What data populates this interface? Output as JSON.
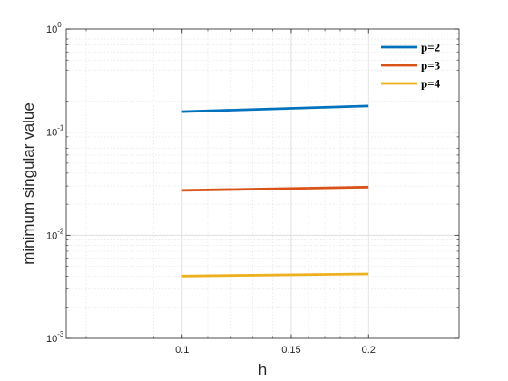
{
  "chart_data": {
    "type": "line",
    "xlabel": "h",
    "ylabel": "minimum singular value",
    "xscale": "log",
    "yscale": "log",
    "xlim": [
      0.065,
      0.28
    ],
    "ylim": [
      0.001,
      1
    ],
    "grid": true,
    "minor_grid": true,
    "legend_position": "top-right",
    "x_ticks": [
      {
        "value": 0.1,
        "label": "0.1"
      },
      {
        "value": 0.15,
        "label": "0.15"
      },
      {
        "value": 0.2,
        "label": "0.2"
      }
    ],
    "y_ticks": [
      {
        "value": 0.001,
        "base": "10",
        "exp": "-3"
      },
      {
        "value": 0.01,
        "base": "10",
        "exp": "-2"
      },
      {
        "value": 0.1,
        "base": "10",
        "exp": "-1"
      },
      {
        "value": 1,
        "base": "10",
        "exp": "0"
      }
    ],
    "series": [
      {
        "name": "p=2",
        "color": "#0072BD",
        "x": [
          0.1,
          0.2
        ],
        "y": [
          0.158,
          0.179
        ]
      },
      {
        "name": "p=3",
        "color": "#D95319",
        "x": [
          0.1,
          0.2
        ],
        "y": [
          0.0272,
          0.0293
        ]
      },
      {
        "name": "p=4",
        "color": "#EDB120",
        "x": [
          0.1,
          0.2
        ],
        "y": [
          0.00402,
          0.00421
        ]
      }
    ]
  }
}
